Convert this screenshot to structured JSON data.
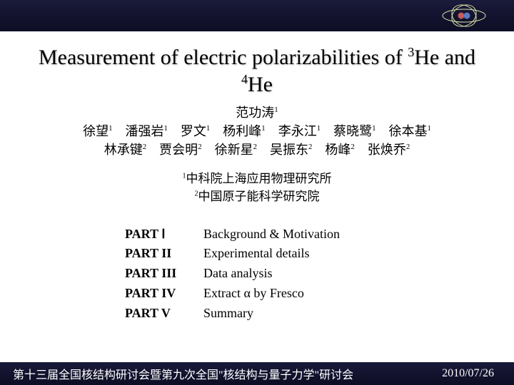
{
  "colors": {
    "bar_bg_top": "#1a1a3a",
    "bar_bg_bottom": "#0d0d25",
    "page_bg": "#ffffff",
    "text": "#000000",
    "footer_text": "#ffffff",
    "logo_orbit": "#d8e0a8",
    "logo_sphere1": "#c85a5a",
    "logo_sphere2": "#5a7ac8"
  },
  "title_html": "Measurement of electric polarizabilities of <sup>3</sup>He and <sup>4</sup>He",
  "authors": {
    "line1_html": "范功涛<sup>1</sup>",
    "line2_html": "徐望<sup>1</sup>　潘强岩<sup>1</sup>　罗文<sup>1</sup>　杨利峰<sup>1</sup>　李永江<sup>1</sup>　蔡晓鹭<sup>1</sup>　徐本基<sup>1</sup>",
    "line3_html": "林承键<sup>2</sup>　贾会明<sup>2</sup>　徐新星<sup>2</sup>　吴振东<sup>2</sup>　杨峰<sup>2</sup>　张焕乔<sup>2</sup>"
  },
  "affiliations": {
    "line1_html": "<sup>1</sup>中科院上海应用物理研究所",
    "line2_html": "<sup>2</sup>中国原子能科学研究院"
  },
  "parts": [
    {
      "label": "PART Ⅰ",
      "desc": "Background & Motivation"
    },
    {
      "label": "PART II",
      "desc": "Experimental details"
    },
    {
      "label": "PART III",
      "desc": "Data analysis"
    },
    {
      "label": "PART IV",
      "desc": "Extract α by Fresco"
    },
    {
      "label": "PART V",
      "desc": "Summary"
    }
  ],
  "footer": {
    "conference": "第十三届全国核结构研讨会暨第九次全国\"核结构与量子力学\"研讨会",
    "date": "2010/07/26"
  }
}
